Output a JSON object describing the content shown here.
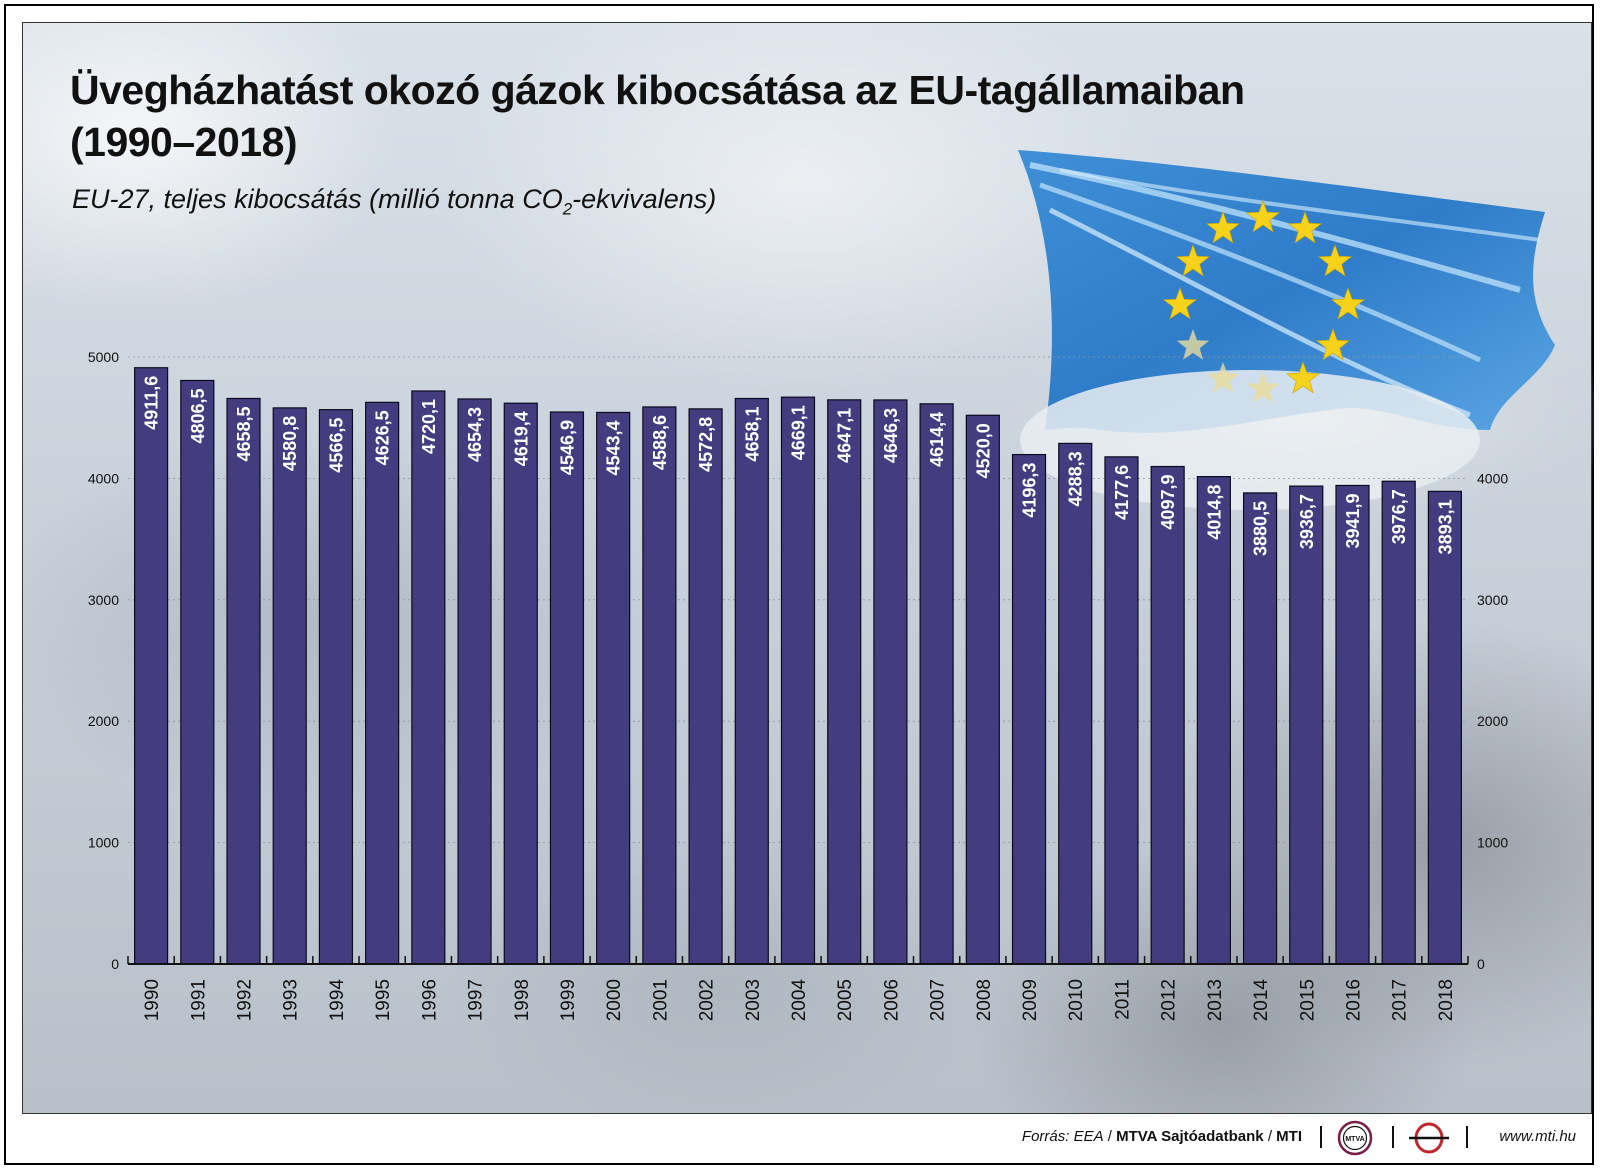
{
  "header": {
    "title_line1": "Üvegházhatást okozó gázok kibocsátása az EU-tagállamaiban",
    "title_line2": "(1990–2018)",
    "subtitle_pre": "EU-27, teljes kibocsátás (millió tonna CO",
    "subtitle_sub": "2",
    "subtitle_post": "-ekvivalens)"
  },
  "chart_data": {
    "type": "bar",
    "title": "Üvegházhatást okozó gázok kibocsátása az EU-tagállamaiban (1990–2018)",
    "subtitle": "EU-27, teljes kibocsátás (millió tonna CO2-ekvivalens)",
    "categories": [
      "1990",
      "1991",
      "1992",
      "1993",
      "1994",
      "1995",
      "1996",
      "1997",
      "1998",
      "1999",
      "2000",
      "2001",
      "2002",
      "2003",
      "2004",
      "2005",
      "2006",
      "2007",
      "2008",
      "2009",
      "2010",
      "2011",
      "2012",
      "2013",
      "2014",
      "2015",
      "2016",
      "2017",
      "2018"
    ],
    "values": [
      4911.6,
      4806.5,
      4658.5,
      4580.8,
      4566.5,
      4626.5,
      4720.1,
      4654.3,
      4619.4,
      4546.9,
      4543.4,
      4588.6,
      4572.8,
      4658.1,
      4669.1,
      4647.1,
      4646.3,
      4614.4,
      4520.0,
      4196.3,
      4288.3,
      4177.6,
      4097.9,
      4014.8,
      3880.5,
      3936.7,
      3941.9,
      3976.7,
      3893.1
    ],
    "value_labels": [
      "4911,6",
      "4806,5",
      "4658,5",
      "4580,8",
      "4566,5",
      "4626,5",
      "4720,1",
      "4654,3",
      "4619,4",
      "4546,9",
      "4543,4",
      "4588,6",
      "4572,8",
      "4658,1",
      "4669,1",
      "4647,1",
      "4646,3",
      "4614,4",
      "4520,0",
      "4196,3",
      "4288,3",
      "4177,6",
      "4097,9",
      "4014,8",
      "3880,5",
      "3936,7",
      "3941,9",
      "3976,7",
      "3893,1"
    ],
    "ylim": [
      0,
      5000
    ],
    "left_ticks": [
      0,
      1000,
      2000,
      3000,
      4000,
      5000
    ],
    "right_ticks": [
      0,
      1000,
      2000,
      3000,
      4000
    ],
    "grid": true,
    "bar_color": "#433d80"
  },
  "footer": {
    "source_label": "Forrás: EEA",
    "agency": "MTVA Sajtóadatbank",
    "mti": "MTI",
    "logo1_text": "MTVA",
    "url": "www.mti.hu"
  }
}
